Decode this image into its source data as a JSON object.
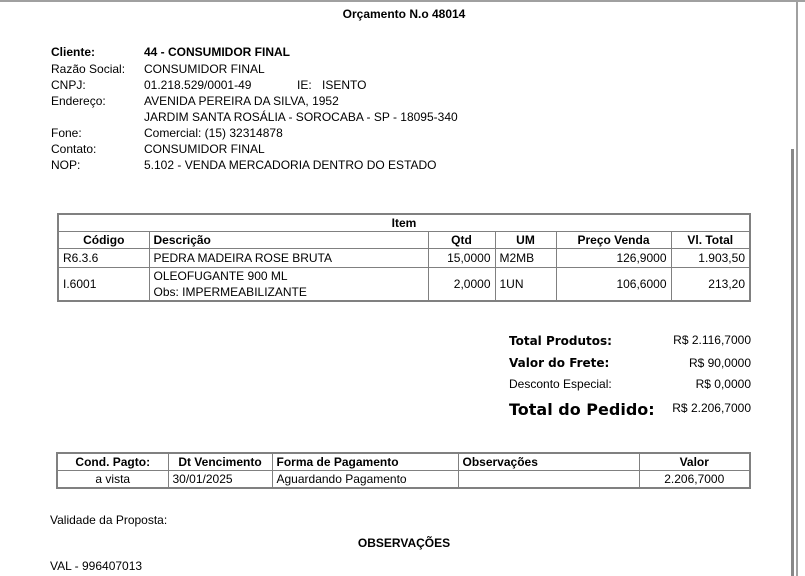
{
  "title": "Orçamento N.o 48014",
  "client": {
    "cliente_label": "Cliente:",
    "cliente": "44 - CONSUMIDOR FINAL",
    "razao_label": "Razão Social:",
    "razao": "CONSUMIDOR FINAL",
    "cnpj_label": "CNPJ:",
    "cnpj": "01.218.529/0001-49",
    "ie_label": "IE:",
    "ie": "ISENTO",
    "endereco_label": "Endereço:",
    "endereco1": "AVENIDA PEREIRA DA SILVA, 1952",
    "endereco2": "JARDIM SANTA ROSÁLIA - SOROCABA - SP - 18095-340",
    "fone_label": "Fone:",
    "fone": "Comercial: (15) 32314878",
    "contato_label": "Contato:",
    "contato": "CONSUMIDOR FINAL",
    "nop_label": "NOP:",
    "nop": "5.102 - VENDA MERCADORIA DENTRO DO ESTADO"
  },
  "items": {
    "caption": "Item",
    "headers": [
      "Código",
      "Descrição",
      "Qtd",
      "UM",
      "Preço Venda",
      "Vl. Total"
    ],
    "rows": [
      {
        "codigo": "R6.3.6",
        "descricao": "PEDRA MADEIRA ROSE BRUTA",
        "obs": "",
        "qtd": "15,0000",
        "um": "M2MB",
        "preco": "126,9000",
        "total": "1.903,50"
      },
      {
        "codigo": "I.6001",
        "descricao": "OLEOFUGANTE 900 ML",
        "obs": "Obs: IMPERMEABILIZANTE",
        "qtd": "2,0000",
        "um": "1UN",
        "preco": "106,6000",
        "total": "213,20"
      }
    ]
  },
  "totals": {
    "produtos_label": "Total Produtos:",
    "produtos": "R$ 2.116,7000",
    "frete_label": "Valor do Frete:",
    "frete": "R$ 90,0000",
    "desconto_label": "Desconto Especial:",
    "desconto": "R$ 0,0000",
    "pedido_label": "Total do Pedido:",
    "pedido": "R$ 2.206,7000"
  },
  "payment": {
    "headers": [
      "Cond. Pagto:",
      "Dt Vencimento",
      "Forma de Pagamento",
      "Observações",
      "Valor"
    ],
    "row": {
      "cond": "a vista",
      "venc": "30/01/2025",
      "forma": "Aguardando Pagamento",
      "obs": "",
      "valor": "2.206,7000"
    }
  },
  "validade_label": "Validade da Proposta:",
  "obs_title": "OBSERVAÇÕES",
  "obs_text": "VAL - 996407013"
}
